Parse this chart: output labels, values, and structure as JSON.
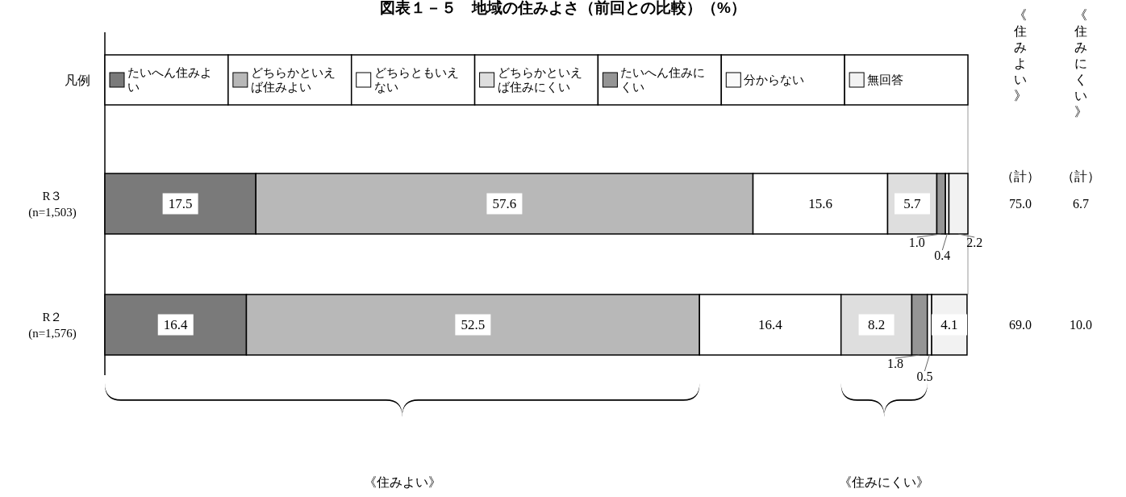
{
  "chart_data": {
    "type": "bar",
    "orientation": "horizontal",
    "stacked": true,
    "title": "図表１－５　地域の住みよさ（前回との比較）（%）",
    "categories": [
      "R３\n(n=1,503)",
      "R２\n(n=1,576)"
    ],
    "series": [
      {
        "name": "たいへん住みよい",
        "color": "#7a7a7a",
        "values": [
          17.5,
          16.4
        ],
        "value_labels": [
          "17.5",
          "16.4"
        ]
      },
      {
        "name": "どちらかといえば住みよい",
        "color": "#b8b8b8",
        "values": [
          57.6,
          52.5
        ],
        "value_labels": [
          "57.6",
          "52.5"
        ]
      },
      {
        "name": "どちらともいえない",
        "color": "#ffffff",
        "values": [
          15.6,
          16.4
        ],
        "value_labels": [
          "15.6",
          "16.4"
        ]
      },
      {
        "name": "どちらかといえば住みにくい",
        "color": "#dedede",
        "values": [
          5.7,
          8.2
        ],
        "value_labels": [
          "5.7",
          "8.2"
        ]
      },
      {
        "name": "たいへん住みにくい",
        "color": "#959595",
        "values": [
          1.0,
          1.8
        ],
        "value_labels": [
          "1.0",
          "1.8"
        ]
      },
      {
        "name": "分からない",
        "color": "#fafafa",
        "values": [
          0.4,
          0.5
        ],
        "value_labels": [
          "0.4",
          "0.5"
        ]
      },
      {
        "name": "無回答",
        "color": "#f2f2f2",
        "values": [
          2.2,
          4.1
        ],
        "value_labels": [
          "2.2",
          "4.1"
        ]
      }
    ],
    "xlim": [
      0,
      100
    ],
    "tick_labels": "y",
    "legend": "top",
    "annotations": [
      "凡例",
      "《住みよい》",
      "（計）",
      "《住みにくい》",
      "（計）",
      "75.0",
      "6.7",
      "69.0",
      "10.0",
      "《住みよい》",
      "《住みにくい》"
    ]
  }
}
